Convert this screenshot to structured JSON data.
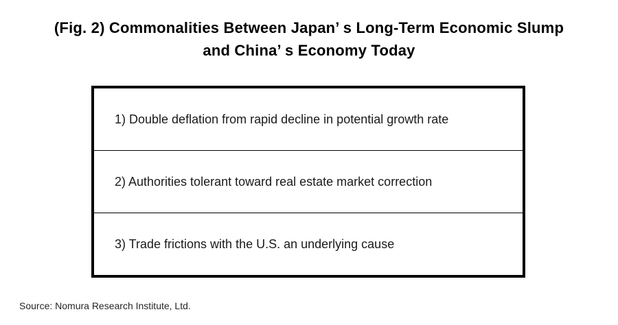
{
  "title": {
    "line1": "(Fig. 2) Commonalities Between Japan’ s Long-Term Economic Slump",
    "line2": "and China’ s Economy Today"
  },
  "table": {
    "rows": [
      "1) Double deflation from rapid decline in potential growth rate",
      "2) Authorities tolerant toward real estate market correction",
      "3) Trade frictions with the U.S. an underlying cause"
    ]
  },
  "source": "Source: Nomura Research Institute, Ltd.",
  "colors": {
    "border": "#000000",
    "title_text": "#000000",
    "body_text": "#1a1a1a",
    "background": "#ffffff"
  }
}
